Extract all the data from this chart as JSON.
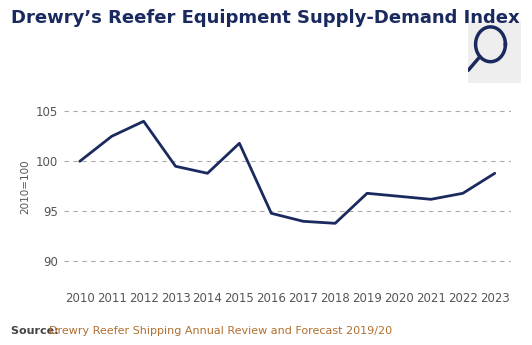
{
  "title": "Drewry’s Reefer Equipment Supply-Demand Index",
  "ylabel": "2010=100",
  "source_label": "Source: ",
  "source_link": "Drewry Reefer Shipping Annual Review and Forecast 2019/20",
  "years": [
    2010,
    2011,
    2012,
    2013,
    2014,
    2015,
    2016,
    2017,
    2018,
    2019,
    2020,
    2021,
    2022,
    2023
  ],
  "values": [
    100.0,
    102.5,
    104.0,
    99.5,
    98.8,
    101.8,
    94.8,
    94.0,
    93.8,
    96.8,
    96.5,
    96.2,
    96.8,
    98.8
  ],
  "line_color": "#1a2a5e",
  "line_width": 2.0,
  "grid_color": "#aaaaaa",
  "yticks": [
    90,
    95,
    100,
    105
  ],
  "ylim": [
    87.5,
    107.5
  ],
  "xlim": [
    2009.5,
    2023.5
  ],
  "title_fontsize": 13,
  "title_color": "#1a2a5e",
  "ylabel_fontsize": 7.5,
  "tick_fontsize": 8.5,
  "source_label_color": "#444444",
  "source_link_color": "#b07030",
  "bg_color": "#ffffff",
  "search_icon_color": "#1a2a5e"
}
